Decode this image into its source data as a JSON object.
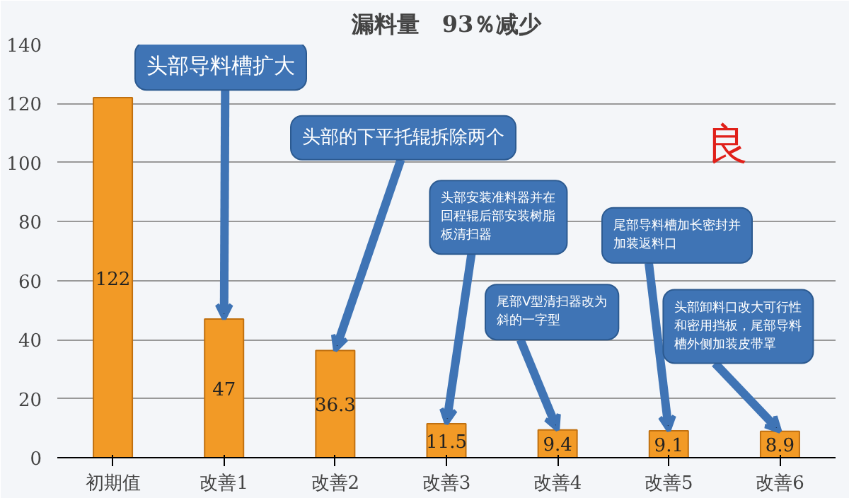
{
  "chart_data": {
    "type": "bar",
    "title": "漏料量　93％减少",
    "categories": [
      "初期值",
      "改善1",
      "改善2",
      "改善3",
      "改善4",
      "改善5",
      "改善6"
    ],
    "values": [
      122,
      47,
      36.3,
      11.5,
      9.4,
      9.1,
      8.9
    ],
    "color": "#f29a26",
    "data_labels": true,
    "ylim": [
      0,
      140
    ],
    "yticks": [
      0,
      20,
      40,
      60,
      80,
      100,
      120,
      140
    ],
    "grid": "y",
    "annotations": [
      {
        "text": "头部导料槽扩大",
        "x": "改善1",
        "y": 47
      },
      {
        "text": "头部的下平托辊拆除两个",
        "x": "改善2",
        "y": 36.3
      },
      {
        "text": "头部安装准料器并在回程辊后部安装树脂板清扫器",
        "x": "改善3",
        "y": 11.5
      },
      {
        "text": "尾部V型清扫器改为斜的一字型",
        "x": "改善4",
        "y": 9.4
      },
      {
        "text": "尾部导料槽加长密封并加装返料口",
        "x": "改善5",
        "y": 9.1
      },
      {
        "text": "头部卸料口改大可行性和密用挡板，尾部导料槽外侧加装皮带罩",
        "x": "改善6",
        "y": 8.9
      },
      "良"
    ]
  }
}
